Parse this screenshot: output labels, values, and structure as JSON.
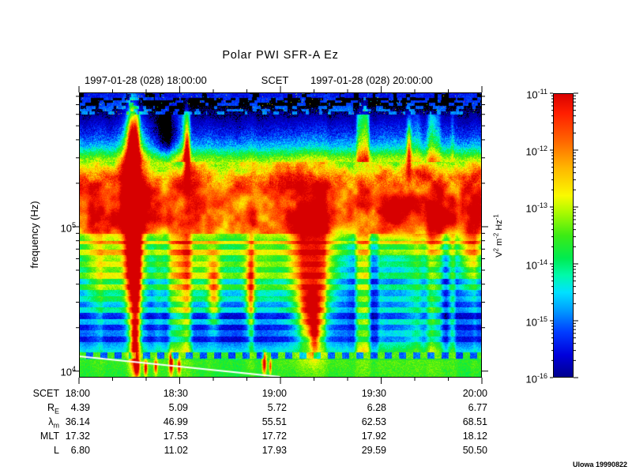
{
  "title": "Polar PWI SFR-A Ez",
  "header": {
    "left_date": "1997-01-28 (028) 18:00:00",
    "center_label": "SCET",
    "right_date": "1997-01-28 (028) 20:00:00"
  },
  "credit": "UIowa 19990822",
  "y_axis": {
    "label": "frequency (Hz)",
    "base": "10",
    "exps": [
      "5",
      "4"
    ]
  },
  "colorbar": {
    "base": "10",
    "exps": [
      "-11",
      "-12",
      "-13",
      "-14",
      "-15",
      "-16"
    ],
    "unit": [
      {
        "t": "V",
        "s": "2"
      },
      {
        "t": " m",
        "s": "-2"
      },
      {
        "t": " Hz",
        "s": "-1"
      }
    ]
  },
  "table": {
    "rows": [
      {
        "label": "SCET",
        "sub": "",
        "values": [
          "18:00",
          "18:30",
          "19:00",
          "19:30",
          "20:00"
        ]
      },
      {
        "label": "R",
        "sub": "E",
        "values": [
          "4.39",
          "5.09",
          "5.72",
          "6.28",
          "6.77"
        ]
      },
      {
        "label": "λ",
        "sub": "m",
        "values": [
          "36.14",
          "46.99",
          "55.51",
          "62.53",
          "68.51"
        ]
      },
      {
        "label": "MLT",
        "sub": "",
        "values": [
          "17.32",
          "17.53",
          "17.72",
          "17.92",
          "18.12"
        ]
      },
      {
        "label": "L",
        "sub": "",
        "values": [
          "6.80",
          "11.02",
          "17.93",
          "29.59",
          "50.50"
        ]
      }
    ]
  },
  "chart_data": {
    "type": "heatmap",
    "subtype": "spectrogram",
    "title": "Polar PWI SFR-A Ez",
    "x": {
      "label": "SCET",
      "start": "1997-01-28 18:00:00",
      "end": "1997-01-28 20:00:00",
      "major_tick_labels": [
        "18:00",
        "18:30",
        "19:00",
        "19:30",
        "20:00"
      ],
      "minor_tick_minutes": 10
    },
    "y": {
      "label": "frequency (Hz)",
      "scale": "log",
      "min_hz": 9000,
      "max_hz": 850000,
      "labeled_decades_hz": [
        10000,
        100000
      ]
    },
    "z": {
      "label": "V^2 m^-2 Hz^-1",
      "scale": "log",
      "min": 1e-16,
      "max": 1e-11,
      "log_min": -16,
      "log_max": -11
    },
    "legend_position": "right-colorbar",
    "grid": false,
    "freq_log_top": 5.93,
    "freq_log_bottom": 3.955,
    "colormap": {
      "black_below": -16.05,
      "stops": [
        {
          "v": 0.0,
          "c": [
            0,
            0,
            140
          ]
        },
        {
          "v": 0.08,
          "c": [
            0,
            0,
            220
          ]
        },
        {
          "v": 0.16,
          "c": [
            0,
            60,
            255
          ]
        },
        {
          "v": 0.24,
          "c": [
            0,
            160,
            255
          ]
        },
        {
          "v": 0.3,
          "c": [
            0,
            225,
            255
          ]
        },
        {
          "v": 0.36,
          "c": [
            0,
            250,
            170
          ]
        },
        {
          "v": 0.42,
          "c": [
            0,
            235,
            80
          ]
        },
        {
          "v": 0.5,
          "c": [
            60,
            235,
            20
          ]
        },
        {
          "v": 0.58,
          "c": [
            170,
            250,
            0
          ]
        },
        {
          "v": 0.64,
          "c": [
            250,
            250,
            0
          ]
        },
        {
          "v": 0.74,
          "c": [
            255,
            180,
            0
          ]
        },
        {
          "v": 0.84,
          "c": [
            255,
            95,
            0
          ]
        },
        {
          "v": 0.93,
          "c": [
            255,
            30,
            0
          ]
        },
        {
          "v": 1.0,
          "c": [
            215,
            0,
            0
          ]
        }
      ]
    },
    "bands": [
      [
        3.955,
        -13.6
      ],
      [
        4.07,
        -13.5
      ],
      [
        4.085,
        -13.9
      ],
      [
        4.128,
        -14.35
      ],
      [
        4.2,
        -15.0
      ],
      [
        4.35,
        -15.15
      ],
      [
        4.55,
        -14.9
      ],
      [
        4.75,
        -14.6
      ],
      [
        4.88,
        -13.8
      ],
      [
        4.95,
        -12.8
      ],
      [
        5.05,
        -12.0
      ],
      [
        5.35,
        -11.95
      ],
      [
        5.48,
        -13.3
      ],
      [
        5.56,
        -14.6
      ],
      [
        5.65,
        -15.3
      ],
      [
        5.78,
        -15.9
      ],
      [
        5.86,
        -16.35
      ],
      [
        5.93,
        -16.45
      ]
    ],
    "events": [
      {
        "t": 0.132,
        "f": 5.3,
        "st": 0.025,
        "sf": 0.38,
        "amp": 4.2
      },
      {
        "t": 0.134,
        "f": 4.7,
        "st": 0.018,
        "sf": 0.4,
        "amp": 4.2
      },
      {
        "t": 0.136,
        "f": 4.2,
        "st": 0.011,
        "sf": 0.18,
        "amp": 2.8
      },
      {
        "t": 0.132,
        "f": 5.62,
        "st": 0.012,
        "sf": 0.2,
        "amp": 3.2
      },
      {
        "t": 0.268,
        "f": 5.52,
        "st": 0.007,
        "sf": 0.2,
        "amp": 2.6
      },
      {
        "t": 0.225,
        "f": 5.62,
        "st": 0.035,
        "sf": 0.16,
        "amp": -1.6
      },
      {
        "t": 0.07,
        "f": 4.72,
        "st": 0.09,
        "sf": 0.33,
        "amp": 2.0
      },
      {
        "t": 0.3,
        "f": 4.7,
        "st": 0.1,
        "sf": 0.3,
        "amp": 1.8
      },
      {
        "t": 0.335,
        "f": 4.55,
        "st": 0.014,
        "sf": 0.25,
        "amp": 2.0
      },
      {
        "t": 0.425,
        "f": 4.55,
        "st": 0.011,
        "sf": 0.28,
        "amp": 2.0
      },
      {
        "t": 0.45,
        "f": 4.7,
        "st": 0.06,
        "sf": 0.28,
        "amp": 1.5
      },
      {
        "t": 0.575,
        "f": 4.75,
        "st": 0.058,
        "sf": 0.45,
        "amp": 3.6
      },
      {
        "t": 0.578,
        "f": 4.4,
        "st": 0.024,
        "sf": 0.2,
        "amp": 3.0
      },
      {
        "t": 0.585,
        "f": 4.24,
        "st": 0.011,
        "sf": 0.12,
        "amp": 2.0
      },
      {
        "t": 0.82,
        "f": 5.55,
        "st": 0.006,
        "sf": 0.18,
        "amp": 2.4
      },
      {
        "t": 0.78,
        "f": 5.1,
        "st": 0.045,
        "sf": 0.18,
        "amp": 1.6
      },
      {
        "t": 0.885,
        "f": 5.05,
        "st": 0.04,
        "sf": 0.2,
        "amp": 1.6
      },
      {
        "t": 0.975,
        "f": 4.9,
        "st": 0.03,
        "sf": 0.35,
        "amp": 2.4
      },
      {
        "t": 0.143,
        "f": 4.03,
        "st": 0.006,
        "sf": 0.06,
        "amp": 3.6
      },
      {
        "t": 0.165,
        "f": 4.02,
        "st": 0.004,
        "sf": 0.05,
        "amp": 3.0
      },
      {
        "t": 0.19,
        "f": 4.03,
        "st": 0.004,
        "sf": 0.05,
        "amp": 2.6
      },
      {
        "t": 0.228,
        "f": 4.05,
        "st": 0.005,
        "sf": 0.07,
        "amp": 3.4
      },
      {
        "t": 0.248,
        "f": 4.03,
        "st": 0.004,
        "sf": 0.05,
        "amp": 2.6
      },
      {
        "t": 0.46,
        "f": 4.05,
        "st": 0.005,
        "sf": 0.07,
        "amp": 3.0
      },
      {
        "t": 0.475,
        "f": 4.03,
        "st": 0.003,
        "sf": 0.05,
        "amp": 2.2
      }
    ],
    "white_line": {
      "t0": 0.0,
      "f0": 4.097,
      "t1": 0.5,
      "f1": 3.955
    },
    "notable_features": [
      "black low-power band above ~600 kHz with sparse blue dashes and specks",
      "intense broadband red burst near 18:16 spanning ~12 kHz to 700 kHz",
      "continuous intense yellow/orange/red emission band ~90-300 kHz across the 2 hours",
      "large red funnel near 19:10 extending down to ~17 kHz",
      "horizontally banded blue region ~15-80 kHz with vertical green streaks",
      "dashed green/blue stripe near 12.5 kHz and steady green band near 10 kHz",
      "descending white line from ~12.5 kHz at 18:00 reaching plot bottom near 19:00",
      "red blobs near 10-11 kHz around 18:17-18:30 and ~18:55"
    ]
  }
}
